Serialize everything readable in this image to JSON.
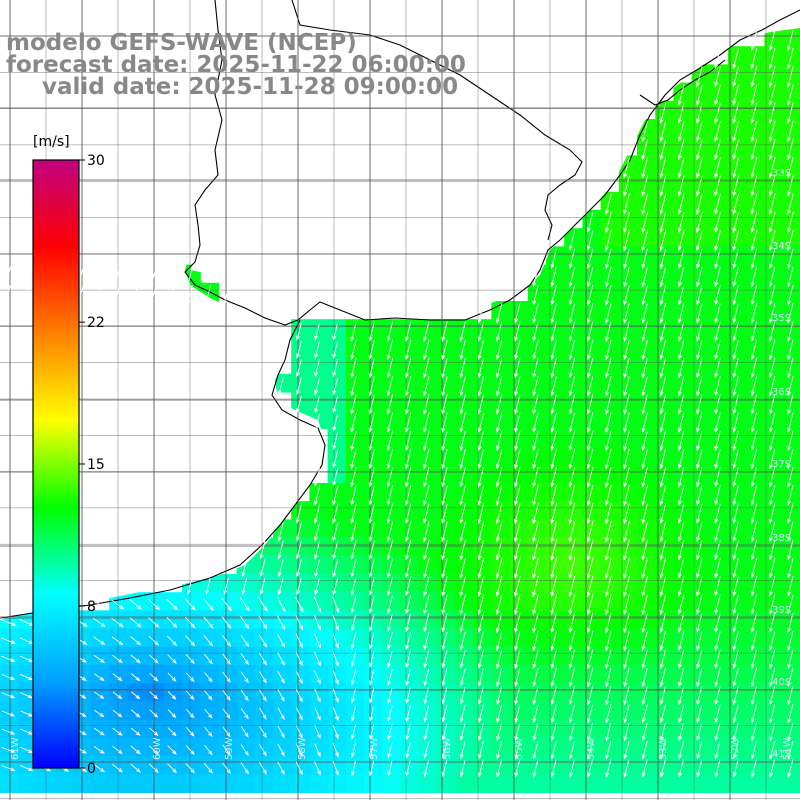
{
  "title": {
    "line1": "modelo GEFS-WAVE (NCEP)",
    "line2": "forecast date: 2025-11-22 06:00:00",
    "line3": "valid date: 2025-11-28 09:00:00"
  },
  "colorbar": {
    "unit": "[m/s]",
    "min": 0,
    "max": 30,
    "ticks": [
      {
        "value": 30,
        "label": "30"
      },
      {
        "value": 22,
        "label": "22"
      },
      {
        "value": 15,
        "label": "15"
      },
      {
        "value": 8,
        "label": "8"
      },
      {
        "value": 0,
        "label": "0"
      }
    ],
    "stops": [
      "#0000ff",
      "#00a0ff",
      "#00ffff",
      "#00ff00",
      "#ffff00",
      "#ff8000",
      "#ff0000",
      "#c00080"
    ]
  },
  "map": {
    "parameter": "wind speed and direction",
    "lon_range": [
      -65,
      -49
    ],
    "lat_range": [
      -41,
      -30
    ],
    "longitude_labels": [
      "61W",
      "60W",
      "59W",
      "58W",
      "57W",
      "56W",
      "55W",
      "54W",
      "53W",
      "52W",
      "51W"
    ],
    "latitude_labels": [
      "33S",
      "34S",
      "35S",
      "36S",
      "37S",
      "38S",
      "39S",
      "40S",
      "41S"
    ],
    "land_color": "#ffffff",
    "coastline_color": "#000000",
    "arrow_color": "#ffffff",
    "grid_color": "#555555"
  }
}
